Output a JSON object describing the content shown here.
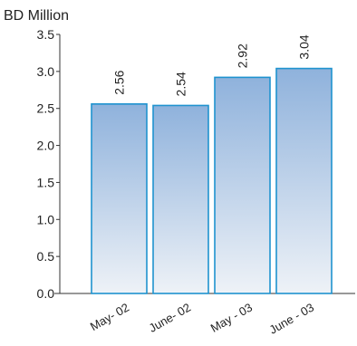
{
  "chart_data": {
    "type": "bar",
    "title": "",
    "ylabel": "BD Million",
    "xlabel": "",
    "categories": [
      "May- 02",
      "June- 02",
      "May - 03",
      "June - 03"
    ],
    "values": [
      2.56,
      2.54,
      2.92,
      3.04
    ],
    "value_labels": [
      "2.56",
      "2.54",
      "2.92",
      "3.04"
    ],
    "ylim": [
      0,
      3.5
    ],
    "yticks": [
      {
        "value": 0,
        "label": "0.0"
      },
      {
        "value": 0.5,
        "label": "0.5"
      },
      {
        "value": 1,
        "label": "1.0"
      },
      {
        "value": 1.5,
        "label": "1.5"
      },
      {
        "value": 2,
        "label": "2.0"
      },
      {
        "value": 2.5,
        "label": "2.5"
      },
      {
        "value": 3,
        "label": "3.0"
      },
      {
        "value": 3.5,
        "label": "3.5"
      }
    ],
    "grid": false,
    "colors": {
      "bar_top": "#8fb2dc",
      "bar_bottom": "#eef2f7",
      "bar_border": "#1f93cf",
      "axis": "#333333"
    }
  }
}
